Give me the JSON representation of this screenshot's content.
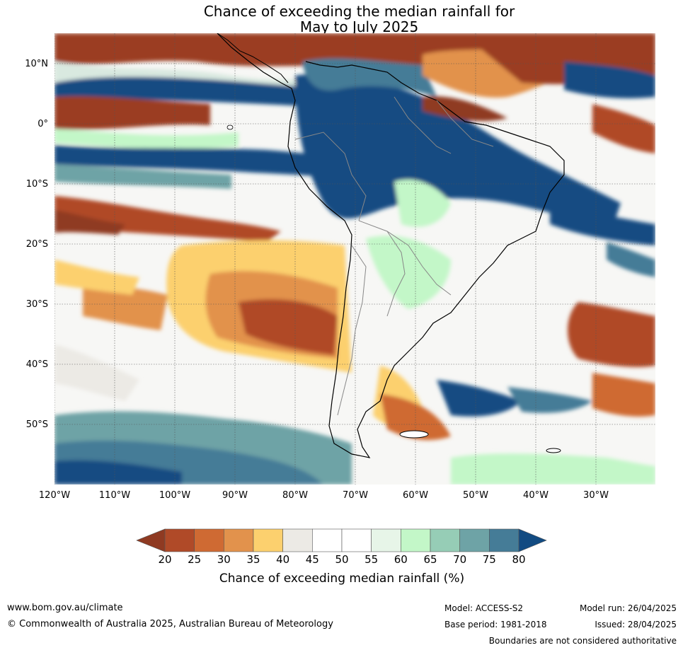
{
  "title": {
    "line1": "Chance of exceeding the median rainfall for",
    "line2": "May to July 2025"
  },
  "map": {
    "region": "South America and surrounding oceans",
    "lat_labels": [
      "10°N",
      "0°",
      "10°S",
      "20°S",
      "30°S",
      "40°S",
      "50°S"
    ],
    "lon_labels": [
      "120°W",
      "110°W",
      "100°W",
      "90°W",
      "80°W",
      "70°W",
      "60°W",
      "50°W",
      "40°W",
      "30°W"
    ],
    "lat_range": [
      -60,
      15
    ],
    "lon_range": [
      -120,
      -20
    ],
    "gridlines": true
  },
  "legend": {
    "ticks": [
      "20",
      "25",
      "30",
      "35",
      "40",
      "45",
      "50",
      "55",
      "60",
      "65",
      "70",
      "75",
      "80"
    ],
    "label": "Chance of exceeding median rainfall (%)",
    "colors": [
      "#8f3a22",
      "#b04a28",
      "#cf6a33",
      "#e2924c",
      "#fcd06e",
      "#eceae5",
      "#ffffff",
      "#ffffff",
      "#e7f5e8",
      "#c3f7c8",
      "#96cdb6",
      "#6ea3a6",
      "#457c97",
      "#124b82"
    ],
    "low_extend_color": "#8f3a22",
    "high_extend_color": "#124b82"
  },
  "footer": {
    "website": "www.bom.gov.au/climate",
    "copyright": "© Commonwealth of Australia 2025, Australian Bureau of Meteorology",
    "model": "Model: ACCESS-S2",
    "model_run": "Model run: 26/04/2025",
    "base_period": "Base period: 1981-2018",
    "issued": "Issued: 28/04/2025",
    "disclaimer": "Boundaries are not considered authoritative"
  }
}
